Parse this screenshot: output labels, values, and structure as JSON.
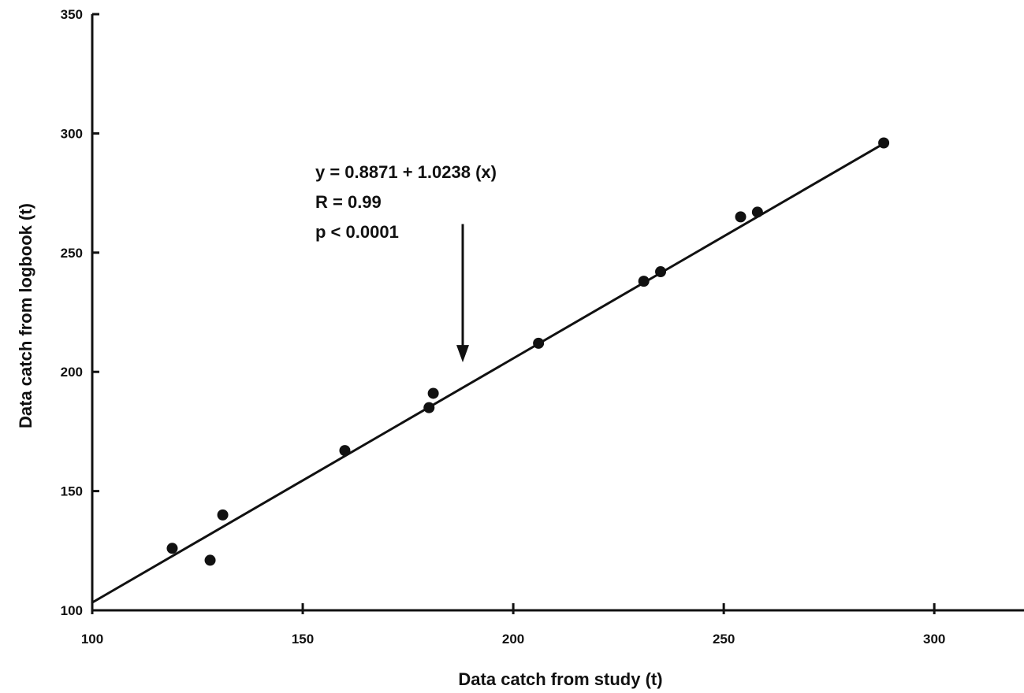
{
  "chart_data": {
    "type": "scatter",
    "xlabel": "Data catch from study (t)",
    "ylabel": "Data catch from logbook (t)",
    "xlim": [
      100,
      320
    ],
    "ylim": [
      100,
      350
    ],
    "x_ticks": [
      100,
      150,
      200,
      250,
      300
    ],
    "y_ticks": [
      100,
      150,
      200,
      250,
      300,
      350
    ],
    "grid": false,
    "points": [
      {
        "x": 119,
        "y": 126
      },
      {
        "x": 128,
        "y": 121
      },
      {
        "x": 131,
        "y": 140
      },
      {
        "x": 160,
        "y": 167
      },
      {
        "x": 180,
        "y": 185
      },
      {
        "x": 181,
        "y": 191
      },
      {
        "x": 206,
        "y": 212
      },
      {
        "x": 231,
        "y": 238
      },
      {
        "x": 235,
        "y": 242
      },
      {
        "x": 254,
        "y": 265
      },
      {
        "x": 258,
        "y": 267
      },
      {
        "x": 288,
        "y": 296
      }
    ],
    "fit_line": {
      "intercept": 0.8871,
      "slope": 1.0238,
      "x_range": [
        100,
        288
      ]
    },
    "annotation": {
      "lines": [
        "y = 0.8871 + 1.0238 (x)",
        "R = 0.99",
        "p < 0.0001"
      ],
      "arrow_x": 188,
      "arrow_from_y": 262,
      "arrow_to_y": 204
    },
    "colors": {
      "ink": "#111111",
      "background": "#ffffff"
    }
  }
}
